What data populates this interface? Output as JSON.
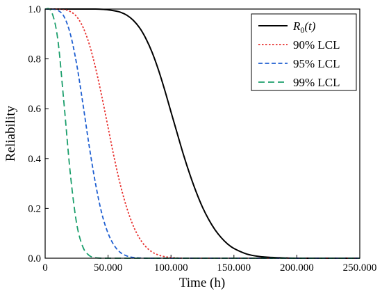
{
  "chart_data": {
    "type": "line",
    "xlabel": "Time (h)",
    "ylabel": "Reliability",
    "xlim": [
      0,
      250000
    ],
    "ylim": [
      0,
      1.0
    ],
    "xticks": [
      0,
      50000,
      100000,
      150000,
      200000,
      250000
    ],
    "xtick_labels": [
      "0",
      "50.000",
      "100.000",
      "150.000",
      "200.000",
      "250.000"
    ],
    "yticks": [
      0,
      0.2,
      0.4,
      0.6,
      0.8,
      1.0
    ],
    "ytick_labels": [
      "0.0",
      "0.2",
      "0.4",
      "0.6",
      "0.8",
      "1.0"
    ],
    "grid": false,
    "legend_position": "top-right",
    "x": [
      0,
      5000,
      10000,
      15000,
      20000,
      25000,
      30000,
      35000,
      40000,
      45000,
      50000,
      55000,
      60000,
      65000,
      70000,
      75000,
      80000,
      85000,
      90000,
      95000,
      100000,
      105000,
      110000,
      115000,
      120000,
      125000,
      130000,
      135000,
      140000,
      145000,
      150000,
      160000,
      170000,
      180000,
      190000,
      200000,
      210000,
      220000,
      230000,
      240000,
      250000
    ],
    "series": [
      {
        "name": "R0(t)",
        "label_main": "R",
        "label_sub": "0",
        "label_rest": "(t)",
        "color": "#000000",
        "dash": "solid",
        "values": [
          1.0,
          1.0,
          1.0,
          1.0,
          1.0,
          1.0,
          1.0,
          1.0,
          1.0,
          0.999,
          0.997,
          0.993,
          0.987,
          0.975,
          0.955,
          0.925,
          0.882,
          0.826,
          0.756,
          0.675,
          0.587,
          0.5,
          0.414,
          0.336,
          0.266,
          0.205,
          0.155,
          0.114,
          0.082,
          0.057,
          0.039,
          0.017,
          0.007,
          0.003,
          0.001,
          0.0,
          0.0,
          0.0,
          0.0,
          0.0,
          0.0
        ]
      },
      {
        "name": "90% LCL",
        "color": "#e8312f",
        "dash": "dotted",
        "values": [
          1.0,
          1.0,
          1.0,
          0.998,
          0.99,
          0.97,
          0.928,
          0.86,
          0.765,
          0.65,
          0.525,
          0.4,
          0.29,
          0.2,
          0.13,
          0.08,
          0.046,
          0.025,
          0.013,
          0.006,
          0.003,
          0.001,
          0.0,
          0.0,
          0.0,
          0.0,
          0.0,
          0.0,
          0.0,
          0.0,
          0.0,
          0.0,
          0.0,
          0.0,
          0.0,
          0.0,
          0.0,
          0.0,
          0.0,
          0.0,
          0.0
        ]
      },
      {
        "name": "95% LCL",
        "color": "#1f5fd1",
        "dash": "dashed",
        "values": [
          1.0,
          1.0,
          0.995,
          0.97,
          0.9,
          0.78,
          0.62,
          0.45,
          0.3,
          0.18,
          0.1,
          0.05,
          0.022,
          0.009,
          0.003,
          0.001,
          0.0,
          0.0,
          0.0,
          0.0,
          0.0,
          0.0,
          0.0,
          0.0,
          0.0,
          0.0,
          0.0,
          0.0,
          0.0,
          0.0,
          0.0,
          0.0,
          0.0,
          0.0,
          0.0,
          0.0,
          0.0,
          0.0,
          0.0,
          0.0,
          0.0
        ]
      },
      {
        "name": "99% LCL",
        "color": "#1a9e6b",
        "dash": "longdash",
        "values": [
          1.0,
          0.99,
          0.88,
          0.62,
          0.34,
          0.14,
          0.045,
          0.011,
          0.002,
          0.0,
          0.0,
          0.0,
          0.0,
          0.0,
          0.0,
          0.0,
          0.0,
          0.0,
          0.0,
          0.0,
          0.0,
          0.0,
          0.0,
          0.0,
          0.0,
          0.0,
          0.0,
          0.0,
          0.0,
          0.0,
          0.0,
          0.0,
          0.0,
          0.0,
          0.0,
          0.0,
          0.0,
          0.0,
          0.0,
          0.0,
          0.0
        ]
      }
    ]
  }
}
